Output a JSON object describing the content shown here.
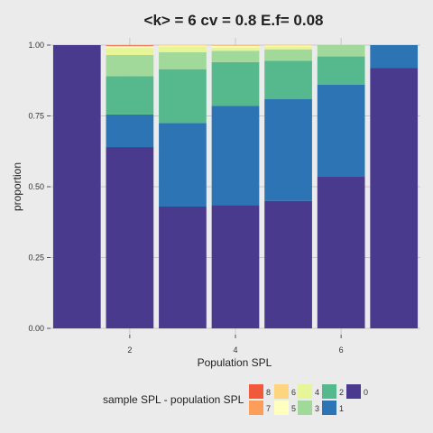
{
  "chart_data": {
    "type": "bar",
    "stacked": true,
    "title": "<k> = 6 cv = 0.8 E.f= 0.08",
    "xlabel": "Population SPL",
    "ylabel": "proportion",
    "ylim": [
      0,
      1
    ],
    "xlim": [
      0.5,
      7.5
    ],
    "yticks": [
      "0.00",
      "0.25",
      "0.50",
      "0.75",
      "1.00"
    ],
    "xticks": [
      "2",
      "4",
      "6"
    ],
    "grid": true,
    "legend_position": "bottom",
    "legend_title": "sample SPL - population SPL",
    "categories": [
      1,
      2,
      3,
      4,
      5,
      6,
      7
    ],
    "series": [
      {
        "name": "0",
        "color": "#4a3a8e",
        "values": [
          1.0,
          0.64,
          0.43,
          0.435,
          0.45,
          0.535,
          0.92
        ]
      },
      {
        "name": "1",
        "color": "#2c74b4",
        "values": [
          0,
          0.115,
          0.295,
          0.35,
          0.36,
          0.325,
          0.08
        ]
      },
      {
        "name": "2",
        "color": "#56b98e",
        "values": [
          0,
          0.135,
          0.19,
          0.155,
          0.135,
          0.1,
          0
        ]
      },
      {
        "name": "3",
        "color": "#a1d99b",
        "values": [
          0,
          0.075,
          0.06,
          0.04,
          0.04,
          0.04,
          0
        ]
      },
      {
        "name": "4",
        "color": "#e6f598",
        "values": [
          0,
          0.025,
          0.02,
          0.012,
          0.01,
          0,
          0
        ]
      },
      {
        "name": "5",
        "color": "#ffffbf",
        "values": [
          0,
          0.005,
          0.003,
          0.005,
          0.003,
          0,
          0
        ]
      },
      {
        "name": "6",
        "color": "#fdd57e",
        "values": [
          0,
          0.002,
          0.002,
          0.002,
          0.002,
          0,
          0
        ]
      },
      {
        "name": "7",
        "color": "#fc9e5a",
        "values": [
          0,
          0.001,
          0,
          0.001,
          0,
          0,
          0
        ]
      },
      {
        "name": "8",
        "color": "#f05a3a",
        "values": [
          0,
          0.002,
          0,
          0,
          0,
          0,
          0
        ]
      }
    ]
  }
}
